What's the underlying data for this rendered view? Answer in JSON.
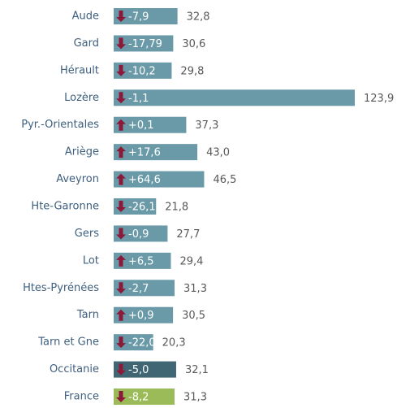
{
  "chart_data": {
    "type": "bar",
    "categories": [
      "Aude",
      "Gard",
      "Hérault",
      "Lozère",
      "Pyr.-Orientales",
      "Ariège",
      "Aveyron",
      "Hte-Garonne",
      "Gers",
      "Lot",
      "Htes-Pyrénées",
      "Tarn",
      "Tarn et Gne",
      "Occitanie",
      "France"
    ],
    "values": [
      32.8,
      30.6,
      29.8,
      123.9,
      37.3,
      43.0,
      46.5,
      21.8,
      27.7,
      29.4,
      31.3,
      30.5,
      20.3,
      32.1,
      31.3
    ],
    "value_labels": [
      "32,8",
      "30,6",
      "29,8",
      "123,9",
      "37,3",
      "43,0",
      "46,5",
      "21,8",
      "27,7",
      "29,4",
      "31,3",
      "30,5",
      "20,3",
      "32,1",
      "31,3"
    ],
    "changes": [
      -7.9,
      -17.79,
      -10.2,
      -1.1,
      0.1,
      17.6,
      64.6,
      -26.1,
      -0.9,
      6.5,
      -2.7,
      0.9,
      -22.0,
      -5.0,
      -8.2
    ],
    "change_labels": [
      "-7,9",
      "-17,79",
      "-10,2",
      "-1,1",
      "+0,1",
      "+17,6",
      "+64,6",
      "-26,1",
      "-0,9",
      "+6,5",
      "-2,7",
      "+0,9",
      "-22,0",
      "-5,0",
      "-8,2"
    ],
    "colors": [
      "#6a9aa8",
      "#6a9aa8",
      "#6a9aa8",
      "#6a9aa8",
      "#6a9aa8",
      "#6a9aa8",
      "#6a9aa8",
      "#6a9aa8",
      "#6a9aa8",
      "#6a9aa8",
      "#6a9aa8",
      "#6a9aa8",
      "#6a9aa8",
      "#3f6672",
      "#9bbb59"
    ],
    "arrow_color": "#8b1a3a"
  }
}
